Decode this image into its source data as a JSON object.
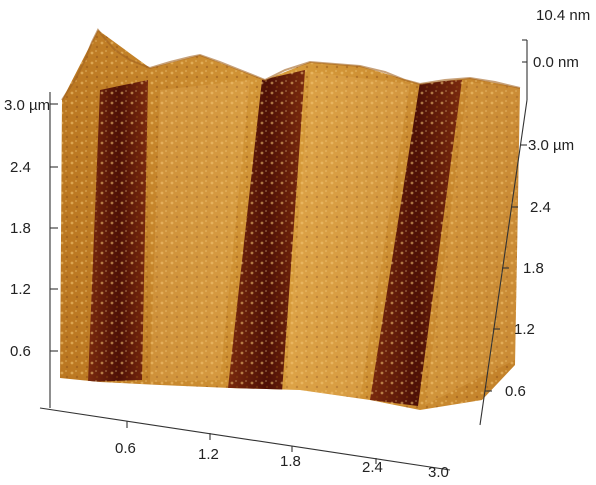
{
  "figure": {
    "z_scale": {
      "top_label": "10.4 nm",
      "bottom_label": "0.0 nm"
    },
    "left_axis": {
      "ticks": [
        "3.0 µm",
        "2.4",
        "1.8",
        "1.2",
        "0.6"
      ]
    },
    "bottom_axis": {
      "ticks": [
        "0.6",
        "1.2",
        "1.8",
        "2.4",
        "3.0"
      ]
    },
    "right_axis": {
      "ticks": [
        "3.0 µm",
        "2.4",
        "1.8",
        "1.2",
        "0.6"
      ]
    },
    "colors": {
      "surface_high": "#f0c070",
      "surface_mid": "#c8892a",
      "surface_low": "#6e1f0c",
      "trench": "#5a1408"
    }
  }
}
